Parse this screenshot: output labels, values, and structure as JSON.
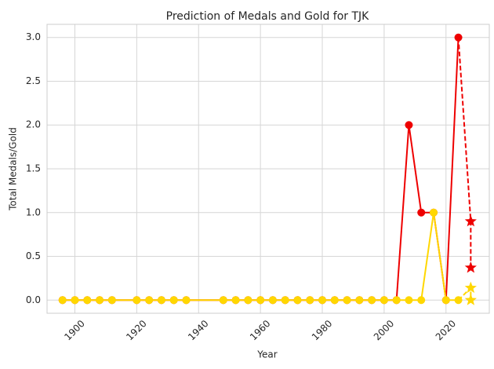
{
  "chart_data": {
    "type": "line",
    "title": "Prediction of Medals and Gold for TJK",
    "xlabel": "Year",
    "ylabel": "Total Medals/Gold",
    "xlim": [
      1891,
      2034
    ],
    "ylim": [
      -0.15,
      3.15
    ],
    "x_ticks": [
      1900,
      1920,
      1940,
      1960,
      1980,
      2000,
      2020
    ],
    "y_ticks": [
      0.0,
      0.5,
      1.0,
      1.5,
      2.0,
      2.5,
      3.0
    ],
    "y_tick_labels": [
      "0.0",
      "0.5",
      "1.0",
      "1.5",
      "2.0",
      "2.5",
      "3.0"
    ],
    "grid": true,
    "colors": {
      "medals": "#ee0000",
      "gold": "#ffd700"
    },
    "series": [
      {
        "role": "medals-history",
        "marker": "circle",
        "x": [
          1896,
          1900,
          1904,
          1908,
          1912,
          1920,
          1924,
          1928,
          1932,
          1936,
          1948,
          1952,
          1956,
          1960,
          1964,
          1968,
          1972,
          1976,
          1980,
          1984,
          1988,
          1992,
          1996,
          2000,
          2004,
          2008,
          2012,
          2016,
          2020,
          2024
        ],
        "y": [
          0,
          0,
          0,
          0,
          0,
          0,
          0,
          0,
          0,
          0,
          0,
          0,
          0,
          0,
          0,
          0,
          0,
          0,
          0,
          0,
          0,
          0,
          0,
          0,
          0,
          2,
          1,
          1,
          0,
          3
        ]
      },
      {
        "role": "gold-history",
        "marker": "circle",
        "x": [
          1896,
          1900,
          1904,
          1908,
          1912,
          1920,
          1924,
          1928,
          1932,
          1936,
          1948,
          1952,
          1956,
          1960,
          1964,
          1968,
          1972,
          1976,
          1980,
          1984,
          1988,
          1992,
          1996,
          2000,
          2004,
          2008,
          2012,
          2016,
          2020,
          2024
        ],
        "y": [
          0,
          0,
          0,
          0,
          0,
          0,
          0,
          0,
          0,
          0,
          0,
          0,
          0,
          0,
          0,
          0,
          0,
          0,
          0,
          0,
          0,
          0,
          0,
          0,
          0,
          0,
          0,
          1,
          0,
          0
        ]
      },
      {
        "role": "medals-prediction",
        "marker": "star",
        "dashed": true,
        "x": [
          2024,
          2028,
          2028
        ],
        "y": [
          3,
          0.9,
          0.37
        ]
      },
      {
        "role": "gold-prediction",
        "marker": "star",
        "dashed": true,
        "x": [
          2024,
          2028,
          2028
        ],
        "y": [
          0,
          0.14,
          0.0
        ]
      }
    ]
  }
}
